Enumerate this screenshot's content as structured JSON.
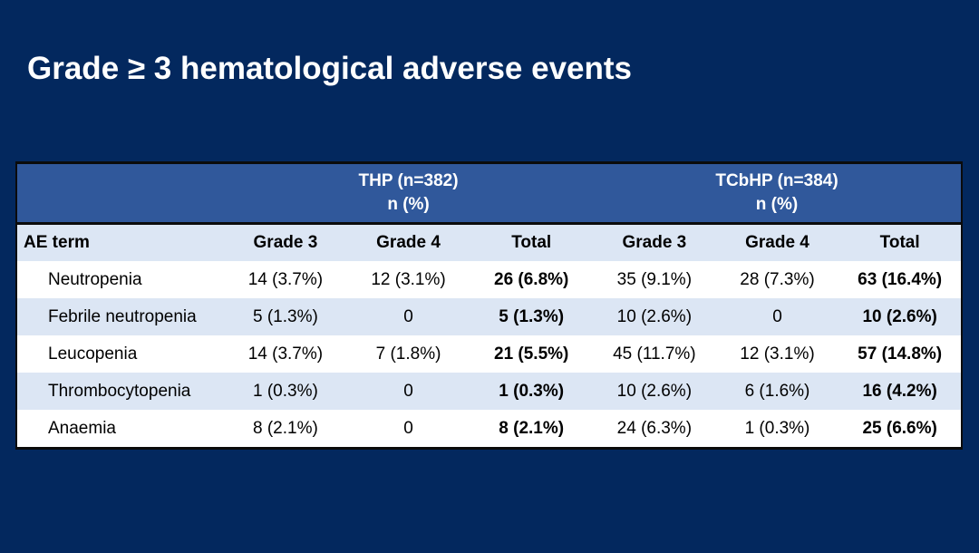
{
  "slide": {
    "title": "Grade ≥ 3 hematological adverse events"
  },
  "table": {
    "group_headers": [
      {
        "label": "THP (n=382)",
        "sub": "n (%)"
      },
      {
        "label": "TCbHP (n=384)",
        "sub": "n (%)"
      }
    ],
    "columns": [
      "AE term",
      "Grade 3",
      "Grade 4",
      "Total",
      "Grade 3",
      "Grade 4",
      "Total"
    ],
    "rows": [
      {
        "term": "Neutropenia",
        "values": [
          "14 (3.7%)",
          "12 (3.1%)",
          "26 (6.8%)",
          "35 (9.1%)",
          "28 (7.3%)",
          "63 (16.4%)"
        ]
      },
      {
        "term": "Febrile neutropenia",
        "values": [
          "5 (1.3%)",
          "0",
          "5 (1.3%)",
          "10 (2.6%)",
          "0",
          "10 (2.6%)"
        ]
      },
      {
        "term": "Leucopenia",
        "values": [
          "14 (3.7%)",
          "7 (1.8%)",
          "21 (5.5%)",
          "45 (11.7%)",
          "12 (3.1%)",
          "57 (14.8%)"
        ]
      },
      {
        "term": "Thrombocytopenia",
        "values": [
          "1 (0.3%)",
          "0",
          "1 (0.3%)",
          "10 (2.6%)",
          "6 (1.6%)",
          "16 (4.2%)"
        ]
      },
      {
        "term": "Anaemia",
        "values": [
          "8 (2.1%)",
          "0",
          "8 (2.1%)",
          "24 (6.3%)",
          "1 (0.3%)",
          "25 (6.6%)"
        ]
      }
    ]
  },
  "colors": {
    "background": "#03285E",
    "header_blue": "#30589B",
    "light_row": "#DCE6F4",
    "white_row": "#FFFFFF",
    "border_black": "#0B0B0B",
    "title_text": "#FFFFFF"
  }
}
